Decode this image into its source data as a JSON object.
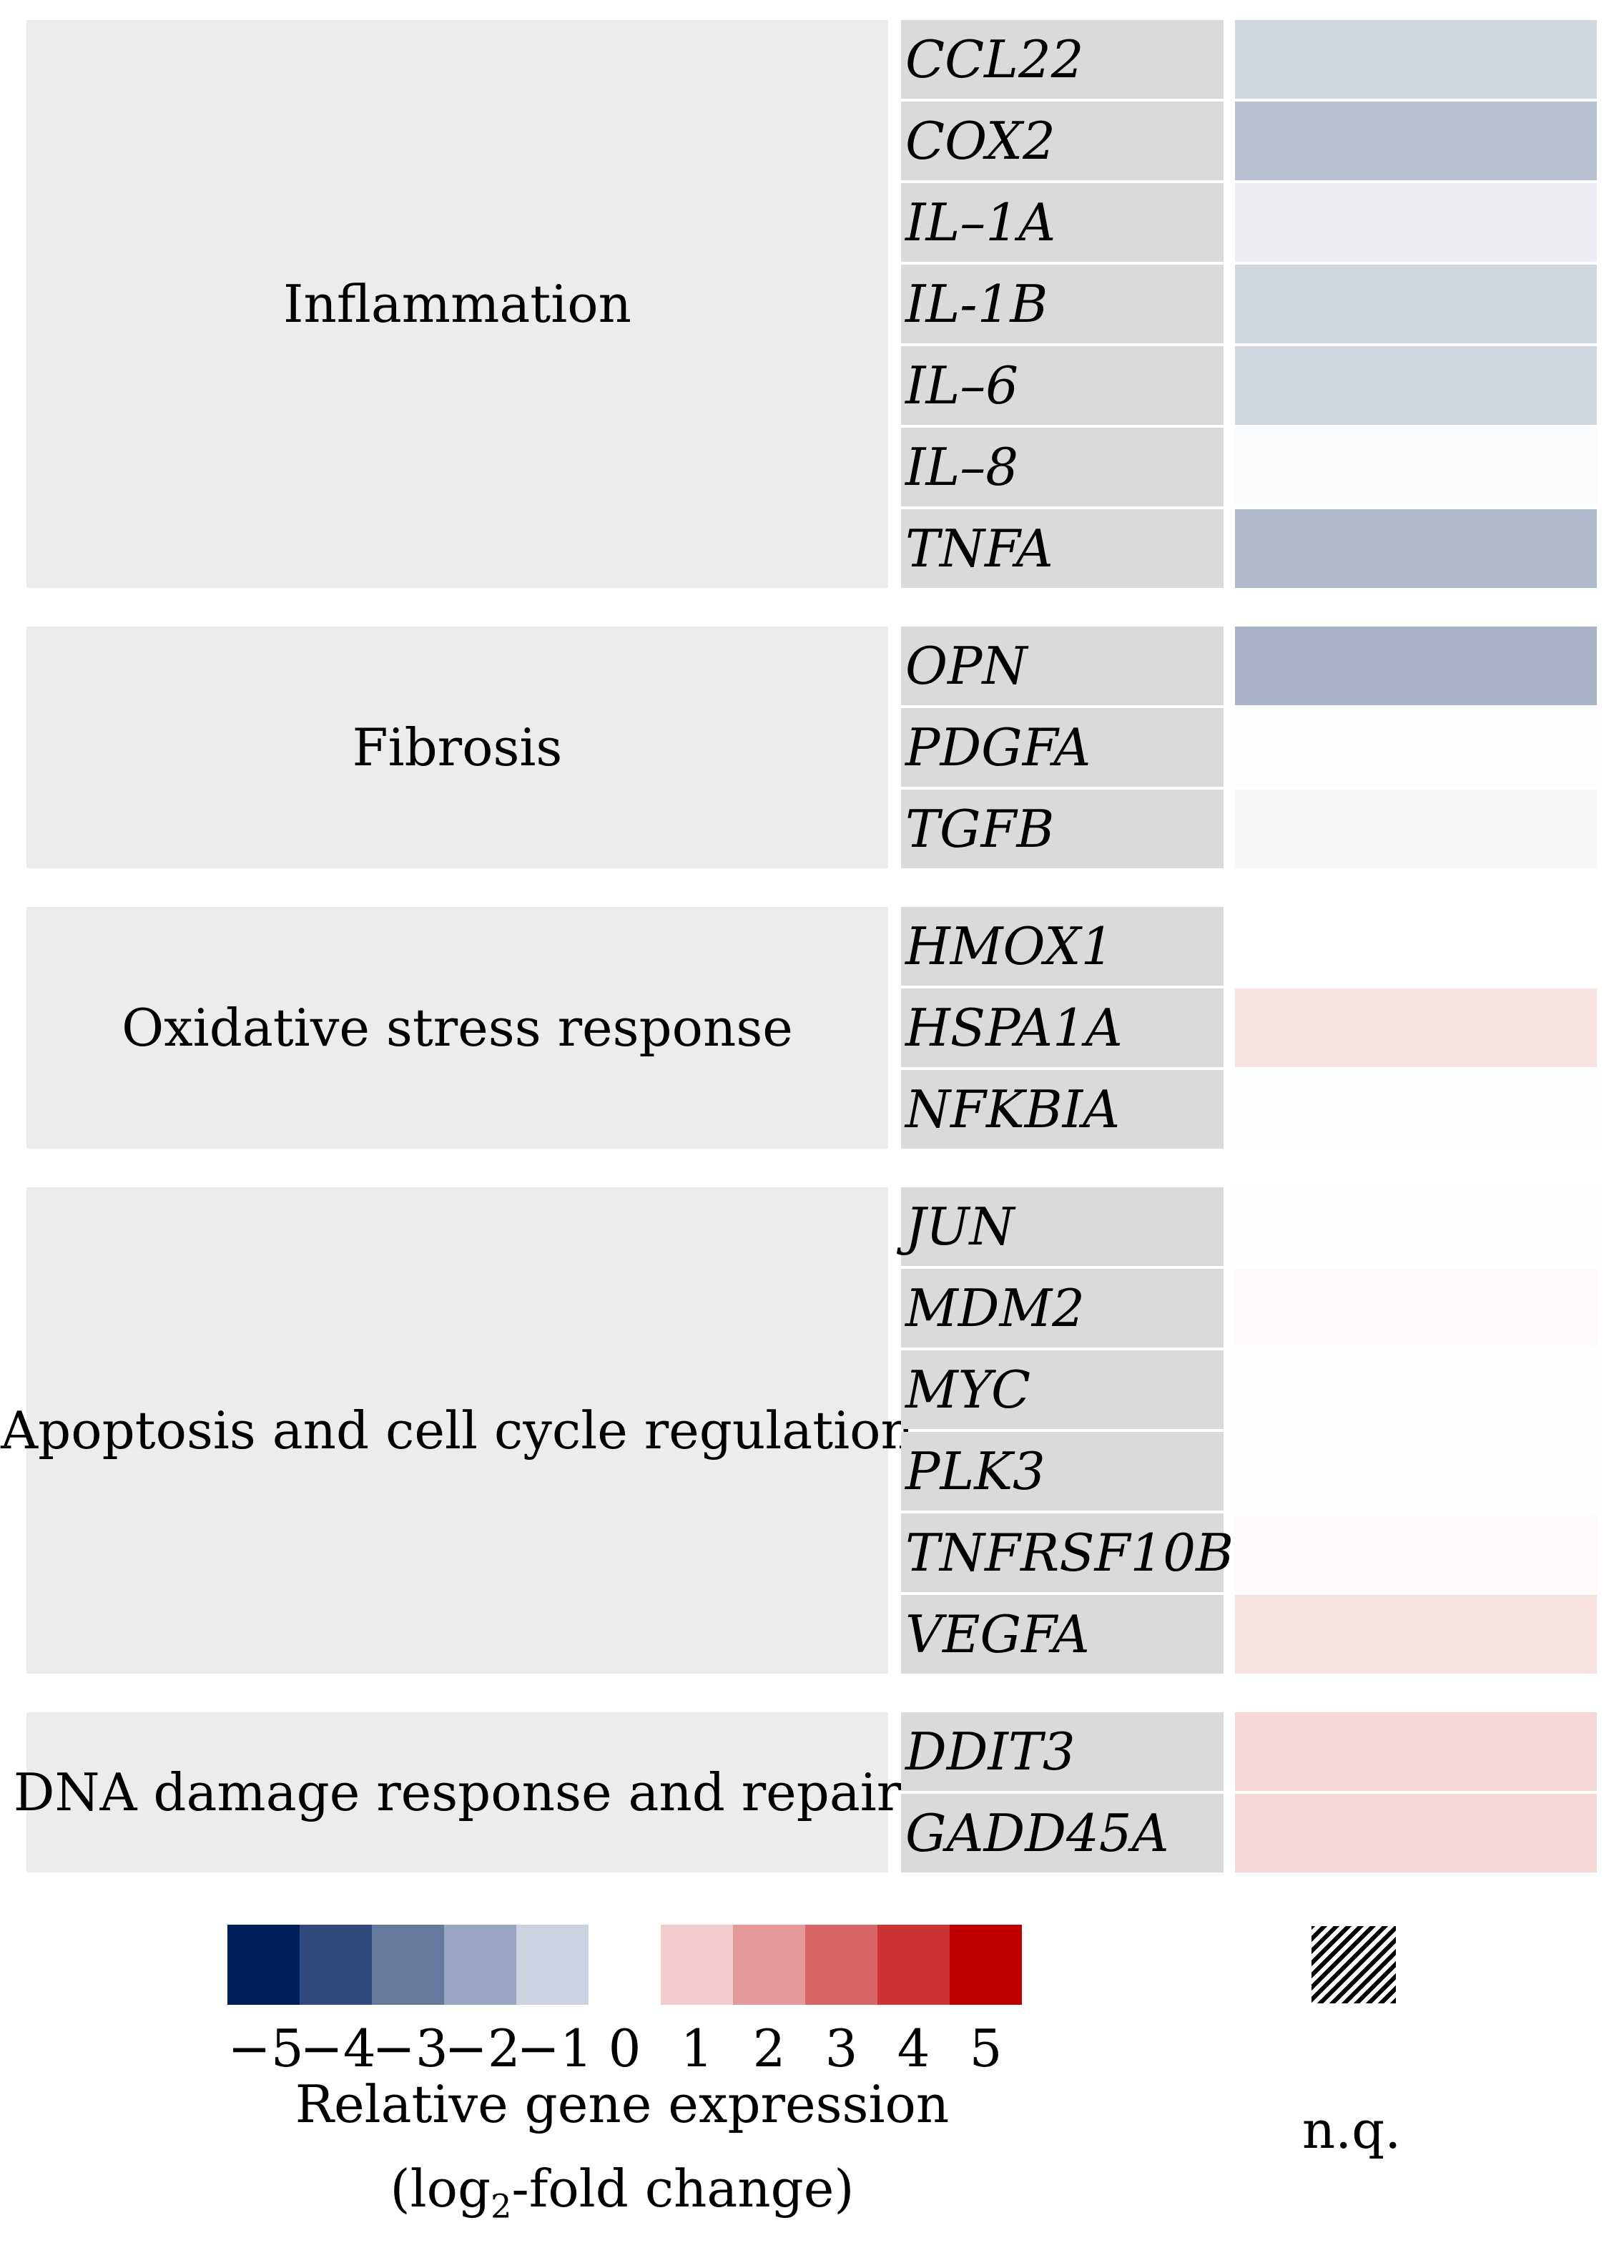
{
  "chart_data": {
    "type": "heatmap",
    "categories": [
      {
        "name": "Inflammation",
        "genes": [
          {
            "gene": "CCL22",
            "value": -0.9
          },
          {
            "gene": "COX2",
            "value": -1.4
          },
          {
            "gene": "IL–1A",
            "value": -0.4
          },
          {
            "gene": "IL-1B",
            "value": -0.9
          },
          {
            "gene": "IL–6",
            "value": -0.9
          },
          {
            "gene": "IL–8",
            "value": -0.1
          },
          {
            "gene": "TNFA",
            "value": -1.6
          }
        ]
      },
      {
        "name": "Fibrosis",
        "genes": [
          {
            "gene": "OPN",
            "value": -1.7
          },
          {
            "gene": "PDGFA",
            "value": -0.05
          },
          {
            "gene": "TGFB",
            "value": -0.2
          }
        ]
      },
      {
        "name": "Oxidative stress response",
        "genes": [
          {
            "gene": "HMOX1",
            "value": 0
          },
          {
            "gene": "HSPA1A",
            "value": 0.6
          },
          {
            "gene": "NFKBIA",
            "value": -0.05
          }
        ]
      },
      {
        "name": "Apoptosis and cell cycle regulation",
        "genes": [
          {
            "gene": "JUN",
            "value": 0.02
          },
          {
            "gene": "MDM2",
            "value": 0.1
          },
          {
            "gene": "MYC",
            "value": 0.02
          },
          {
            "gene": "PLK3",
            "value": 0.02
          },
          {
            "gene": "TNFRSF10B",
            "value": 0.1
          },
          {
            "gene": "VEGFA",
            "value": 0.6
          }
        ]
      },
      {
        "name": "DNA damage response and repair",
        "genes": [
          {
            "gene": "DDIT3",
            "value": 0.8
          },
          {
            "gene": "GADD45A",
            "value": 0.8
          }
        ]
      }
    ],
    "legend": {
      "scale": [
        {
          "value": -5,
          "label": "−5",
          "color": "#00205b"
        },
        {
          "value": -4,
          "label": "−4",
          "color": "#32497e"
        },
        {
          "value": -3,
          "label": "−3",
          "color": "#66799f"
        },
        {
          "value": -2,
          "label": "−2",
          "color": "#99a6c1"
        },
        {
          "value": -1,
          "label": "−1",
          "color": "#ccd2e0"
        },
        {
          "value": 0,
          "label": "0",
          "color": "#ffffff"
        },
        {
          "value": 1,
          "label": "1",
          "color": "#f2cccc"
        },
        {
          "value": 2,
          "label": "2",
          "color": "#e59999"
        },
        {
          "value": 3,
          "label": "3",
          "color": "#d96666"
        },
        {
          "value": 4,
          "label": "4",
          "color": "#cc3333"
        },
        {
          "value": 5,
          "label": "5",
          "color": "#c00000"
        }
      ],
      "title_line1": "Relative gene expression",
      "title_line2_prefix": "(log",
      "title_line2_sub": "2",
      "title_line2_suffix": "-fold change)",
      "nq_label": "n.q."
    }
  }
}
